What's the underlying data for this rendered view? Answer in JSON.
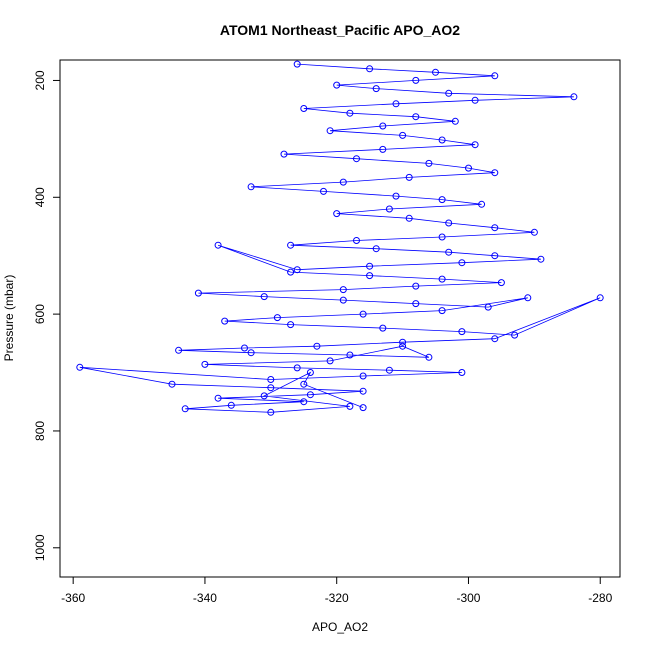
{
  "chart_data": {
    "type": "scatter",
    "title": "ATOM1 Northeast_Pacific APO_AO2",
    "xlabel": "APO_AO2",
    "ylabel": "Pressure (mbar)",
    "xlim": [
      -362,
      -277
    ],
    "ylim": [
      1050,
      165
    ],
    "y_inverted": true,
    "xticks": [
      -360,
      -340,
      -320,
      -300,
      -280
    ],
    "yticks": [
      200,
      400,
      600,
      800,
      1000
    ],
    "grid": false,
    "legend": "none",
    "marker": "open-circle",
    "connected": true,
    "color": "#0000ff",
    "series": [
      {
        "x": [
          -326,
          -315,
          -305,
          -296,
          -308,
          -320,
          -314,
          -303,
          -284,
          -299,
          -311,
          -325,
          -318,
          -308,
          -302,
          -313,
          -321,
          -310,
          -304,
          -299,
          -313,
          -328,
          -317,
          -306,
          -300,
          -296,
          -309,
          -319,
          -333,
          -322,
          -311,
          -304,
          -298,
          -312,
          -320,
          -309,
          -303,
          -296,
          -290,
          -304,
          -317,
          -327,
          -314,
          -303,
          -296,
          -289,
          -301,
          -315,
          -326,
          -338,
          -327,
          -315,
          -304,
          -295,
          -308,
          -319,
          -341,
          -331,
          -319,
          -308,
          -297,
          -291,
          -304,
          -316,
          -329,
          -337,
          -327,
          -313,
          -301,
          -293,
          -280,
          -296,
          -310,
          -323,
          -334,
          -344,
          -333,
          -318,
          -306,
          -310,
          -321,
          -340,
          -326,
          -312,
          -301,
          -316,
          -330,
          -359,
          -345,
          -330,
          -316,
          -324,
          -338,
          -325,
          -336,
          -343,
          -330,
          -318,
          -331,
          -324,
          -325,
          -316
        ],
        "y": [
          172,
          180,
          186,
          192,
          200,
          208,
          214,
          222,
          228,
          234,
          240,
          248,
          256,
          262,
          270,
          278,
          286,
          294,
          302,
          310,
          318,
          326,
          334,
          342,
          350,
          358,
          366,
          374,
          382,
          390,
          398,
          404,
          412,
          420,
          428,
          436,
          444,
          452,
          460,
          468,
          474,
          482,
          488,
          494,
          500,
          506,
          512,
          518,
          524,
          482,
          528,
          534,
          540,
          546,
          552,
          558,
          564,
          570,
          576,
          582,
          588,
          572,
          594,
          600,
          606,
          612,
          618,
          624,
          630,
          636,
          572,
          642,
          648,
          655,
          658,
          662,
          666,
          670,
          674,
          655,
          680,
          686,
          692,
          696,
          700,
          706,
          712,
          691,
          720,
          726,
          732,
          738,
          744,
          750,
          756,
          762,
          768,
          758,
          740,
          700,
          720,
          760
        ]
      }
    ]
  }
}
